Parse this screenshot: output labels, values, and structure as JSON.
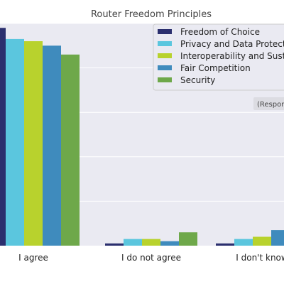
{
  "chart_data": {
    "type": "bar",
    "title": "Router Freedom Principles",
    "categories": [
      "I agree",
      "I do not agree",
      "I don't know"
    ],
    "series": [
      {
        "name": "Freedom of Choice",
        "color": "#2b2f6e",
        "values": [
          0.98,
          0.01,
          0.01
        ]
      },
      {
        "name": "Privacy and Data Protection",
        "color": "#5bc6de",
        "values": [
          0.93,
          0.03,
          0.03
        ]
      },
      {
        "name": "Interoperability and Sustainability",
        "color": "#b8d22d",
        "values": [
          0.92,
          0.03,
          0.04
        ]
      },
      {
        "name": "Fair Competition",
        "color": "#3f8bbd",
        "values": [
          0.9,
          0.02,
          0.07
        ]
      },
      {
        "name": "Security",
        "color": "#6ea84a",
        "values": [
          0.86,
          0.06,
          0.06
        ]
      }
    ],
    "ylim": [
      0,
      1.0
    ],
    "grid": true,
    "legend_position": "top-right",
    "note": "(Respon"
  }
}
